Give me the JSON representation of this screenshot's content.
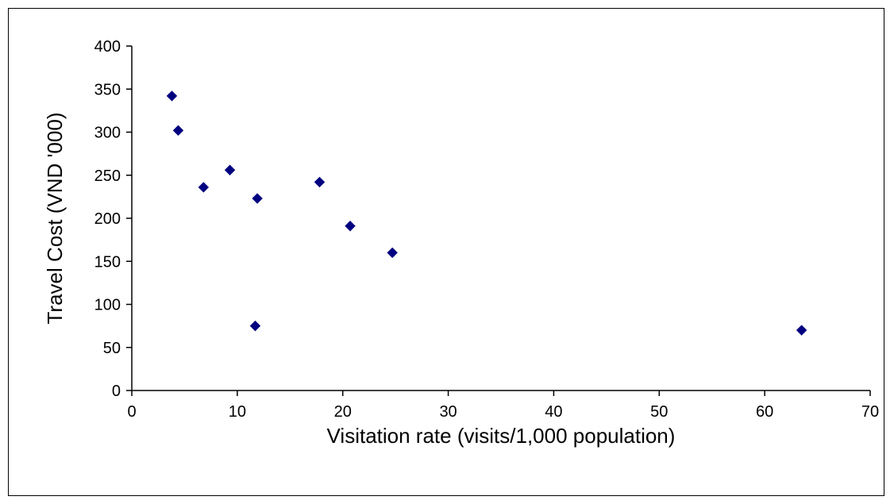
{
  "chart_data": {
    "type": "scatter",
    "title": "",
    "xlabel": "Visitation rate (visits/1,000 population)",
    "ylabel": "Travel Cost (VND '000)",
    "xlim": [
      0,
      70
    ],
    "ylim": [
      0,
      400
    ],
    "x_ticks": [
      0,
      10,
      20,
      30,
      40,
      50,
      60,
      70
    ],
    "y_ticks": [
      0,
      50,
      100,
      150,
      200,
      250,
      300,
      350,
      400
    ],
    "grid": false,
    "legend": "none",
    "marker": "diamond",
    "marker_color": "#000080",
    "points": [
      {
        "x": 3.8,
        "y": 342
      },
      {
        "x": 4.4,
        "y": 302
      },
      {
        "x": 6.8,
        "y": 236
      },
      {
        "x": 9.3,
        "y": 256
      },
      {
        "x": 11.9,
        "y": 223
      },
      {
        "x": 11.7,
        "y": 75
      },
      {
        "x": 17.8,
        "y": 242
      },
      {
        "x": 20.7,
        "y": 191
      },
      {
        "x": 24.7,
        "y": 160
      },
      {
        "x": 63.5,
        "y": 70
      }
    ]
  }
}
